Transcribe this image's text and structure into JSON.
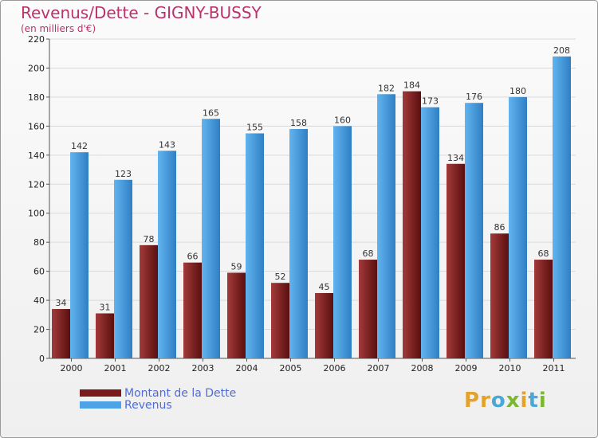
{
  "header": {
    "title": "Revenus/Dette - GIGNY-BUSSY",
    "subtitle": "(en milliers d'€)"
  },
  "logo": {
    "text": "Proxiti"
  },
  "colors": {
    "debt": "#7a1a1a",
    "revenue": "#4da3e6",
    "title": "#b8336a"
  },
  "chart_data": {
    "type": "bar",
    "title": "Revenus/Dette - GIGNY-BUSSY",
    "ylabel": "(en milliers d'€)",
    "xlabel": "",
    "categories": [
      "2000",
      "2001",
      "2002",
      "2003",
      "2004",
      "2005",
      "2006",
      "2007",
      "2008",
      "2009",
      "2010",
      "2011"
    ],
    "series": [
      {
        "name": "Montant de la Dette",
        "values": [
          34,
          31,
          78,
          66,
          59,
          52,
          45,
          68,
          184,
          134,
          86,
          68
        ]
      },
      {
        "name": "Revenus",
        "values": [
          142,
          123,
          143,
          165,
          155,
          158,
          160,
          182,
          173,
          176,
          180,
          208
        ]
      }
    ],
    "ylim": [
      0,
      220
    ],
    "yticks": [
      0,
      20,
      40,
      60,
      80,
      100,
      120,
      140,
      160,
      180,
      200,
      220
    ],
    "grid": true,
    "legend": "bottom-left"
  }
}
